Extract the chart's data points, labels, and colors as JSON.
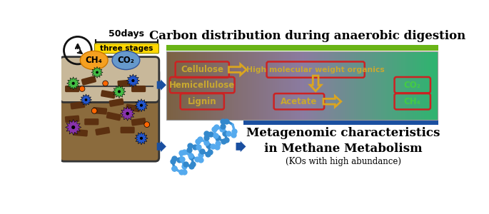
{
  "title_top": "Carbon distribution during anaerobic digestion",
  "title_bottom_main": "Metagenomic characteristics",
  "title_bottom_sub1": "in Methane Metabolism",
  "title_bottom_sub2": "(KOs with high abundance)",
  "days_label": "50days",
  "stages_label": "three stages",
  "box_cellulose": "Cellulose",
  "box_hemi": "Hemicellulose",
  "box_lignin": "Lignin",
  "box_hmwo": "High molecular weight organics",
  "box_co2": "CO₂",
  "box_acetate": "Acetate",
  "box_ch4": "CH₄",
  "green_bar_color": "#6ab417",
  "blue_bar_color": "#1a4fa0",
  "grad_left": "#7B6143",
  "grad_mid": "#8B7BA0",
  "grad_right": "#2db56e",
  "box_border_color": "#cc2222",
  "box_text_color": "#C8A830",
  "box_green_text": "#44cc44",
  "arrow_blue": "#1a4fa0",
  "arrow_yellow_fill": "#DAA520",
  "yellow_bg": "#FFD700",
  "clock_color": "#111111",
  "reactor_top_fill": "#C8B89A",
  "reactor_bot_fill": "#8B6B3D",
  "ch4_color": "#F5A020",
  "co2_color": "#6699CC",
  "microbe_green": "#44BB44",
  "microbe_blue": "#2255CC",
  "microbe_purple": "#8833AA",
  "microbe_orange": "#FF6600",
  "rod_color": "#5C3010"
}
